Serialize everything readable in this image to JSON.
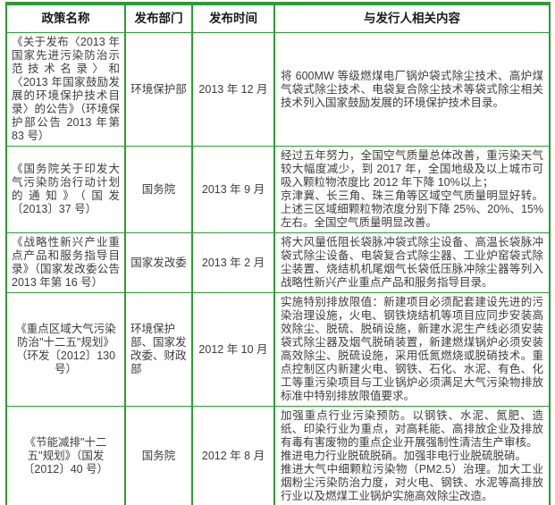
{
  "colors": {
    "border_green": "#2f9b35",
    "text_color": "#3d3d3d",
    "header_text": "#1a1a1a"
  },
  "table": {
    "columns": [
      {
        "label": "政策名称"
      },
      {
        "label": "发布部门"
      },
      {
        "label": "发布时间"
      },
      {
        "label": "与发行人相关内容"
      }
    ],
    "rows": [
      {
        "policy": "《关于发布〈2013 年国家先进污染防治示范技术名录〉和〈2013 年国家鼓励发展的环境保护技术目录〉的公告》（环境保护部公告 2013 年第 83 号）",
        "department": "环境保护部",
        "date": "2013 年 12 月",
        "content": [
          "将 600MW 等级燃煤电厂锅炉袋式除尘技术、高炉煤气袋式除尘技术、电袋复合除尘技术等袋式除尘相关技术列入国家鼓励发展的环境保护技术目录。"
        ]
      },
      {
        "policy": "《国务院关于印发大气污染防治行动计划的通知》（国发〔2013〕37 号）",
        "department": "国务院",
        "date": "2013 年 9 月",
        "content": [
          "经过五年努力，全国空气质量总体改善，重污染天气较大幅度减少，到 2017 年，全国地级及以上城市可吸入颗粒物浓度比 2012 年下降 10%以上；",
          "京津冀、长三角、珠三角等区域空气质量明显好转。上述三区域细颗粒物浓度分别下降 25%、20%、15%左右。全国空气质量明显改善。"
        ]
      },
      {
        "policy": "《战略性新兴产业重点产品和服务指导目录》（国家发改委公告 2013 年第 16 号）",
        "department": "国家发改委",
        "date": "2013 年 2 月",
        "content": [
          "将大风量低阻长袋脉冲袋式除尘设备、高温长袋脉冲袋式除尘设备、电袋复合式除尘器、工业炉窑袋式除尘装置、烧结机机尾烟气长袋低压脉冲除尘器等列入战略性新兴产业重点产品和服务指导目录。"
        ]
      },
      {
        "policy": "《重点区域大气污染防治\"十二五\"规划》（环发〔2012〕130 号）",
        "department": "环境保护部、国家发改委、财政部",
        "date": "2012 年 10 月",
        "content": [
          "实施特别排放限值：新建项目必须配套建设先进的污染治理设施，火电、钢铁烧结机等项目应同步安装高效除尘、脱硫、脱硝设施，新建水泥生产线必须安装袋式除尘器及烟气脱硝装置，新建燃煤锅炉必须安装高效除尘、脱硫设施，采用低氮燃烧或脱硝技术。重点控制区内新建火电、钢铁、石化、水泥、有色、化工等重污染项目与工业锅炉必须满足大气污染物排放标准中特别排放限值要求。"
        ]
      },
      {
        "policy": "《节能减排\"十二五\"规划》（国发〔2012〕40 号）",
        "department": "国务院",
        "date": "2012 年 8 月",
        "content": [
          "加强重点行业污染预防。以钢铁、水泥、氮肥、造纸、印染行业为重点，对高耗能、高排放企业及排放有毒有害废物的重点企业开展强制性清洁生产审核。",
          "推进电力行业脱硫脱硝。加强非电行业脱硫脱硝。",
          "推进大气中细颗粒污染物（PM2.5）治理。加大工业烟粉尘污染防治力度，对火电、钢铁、水泥等高排放行业以及燃煤工业锅炉实施高效除尘改造。"
        ]
      }
    ]
  }
}
